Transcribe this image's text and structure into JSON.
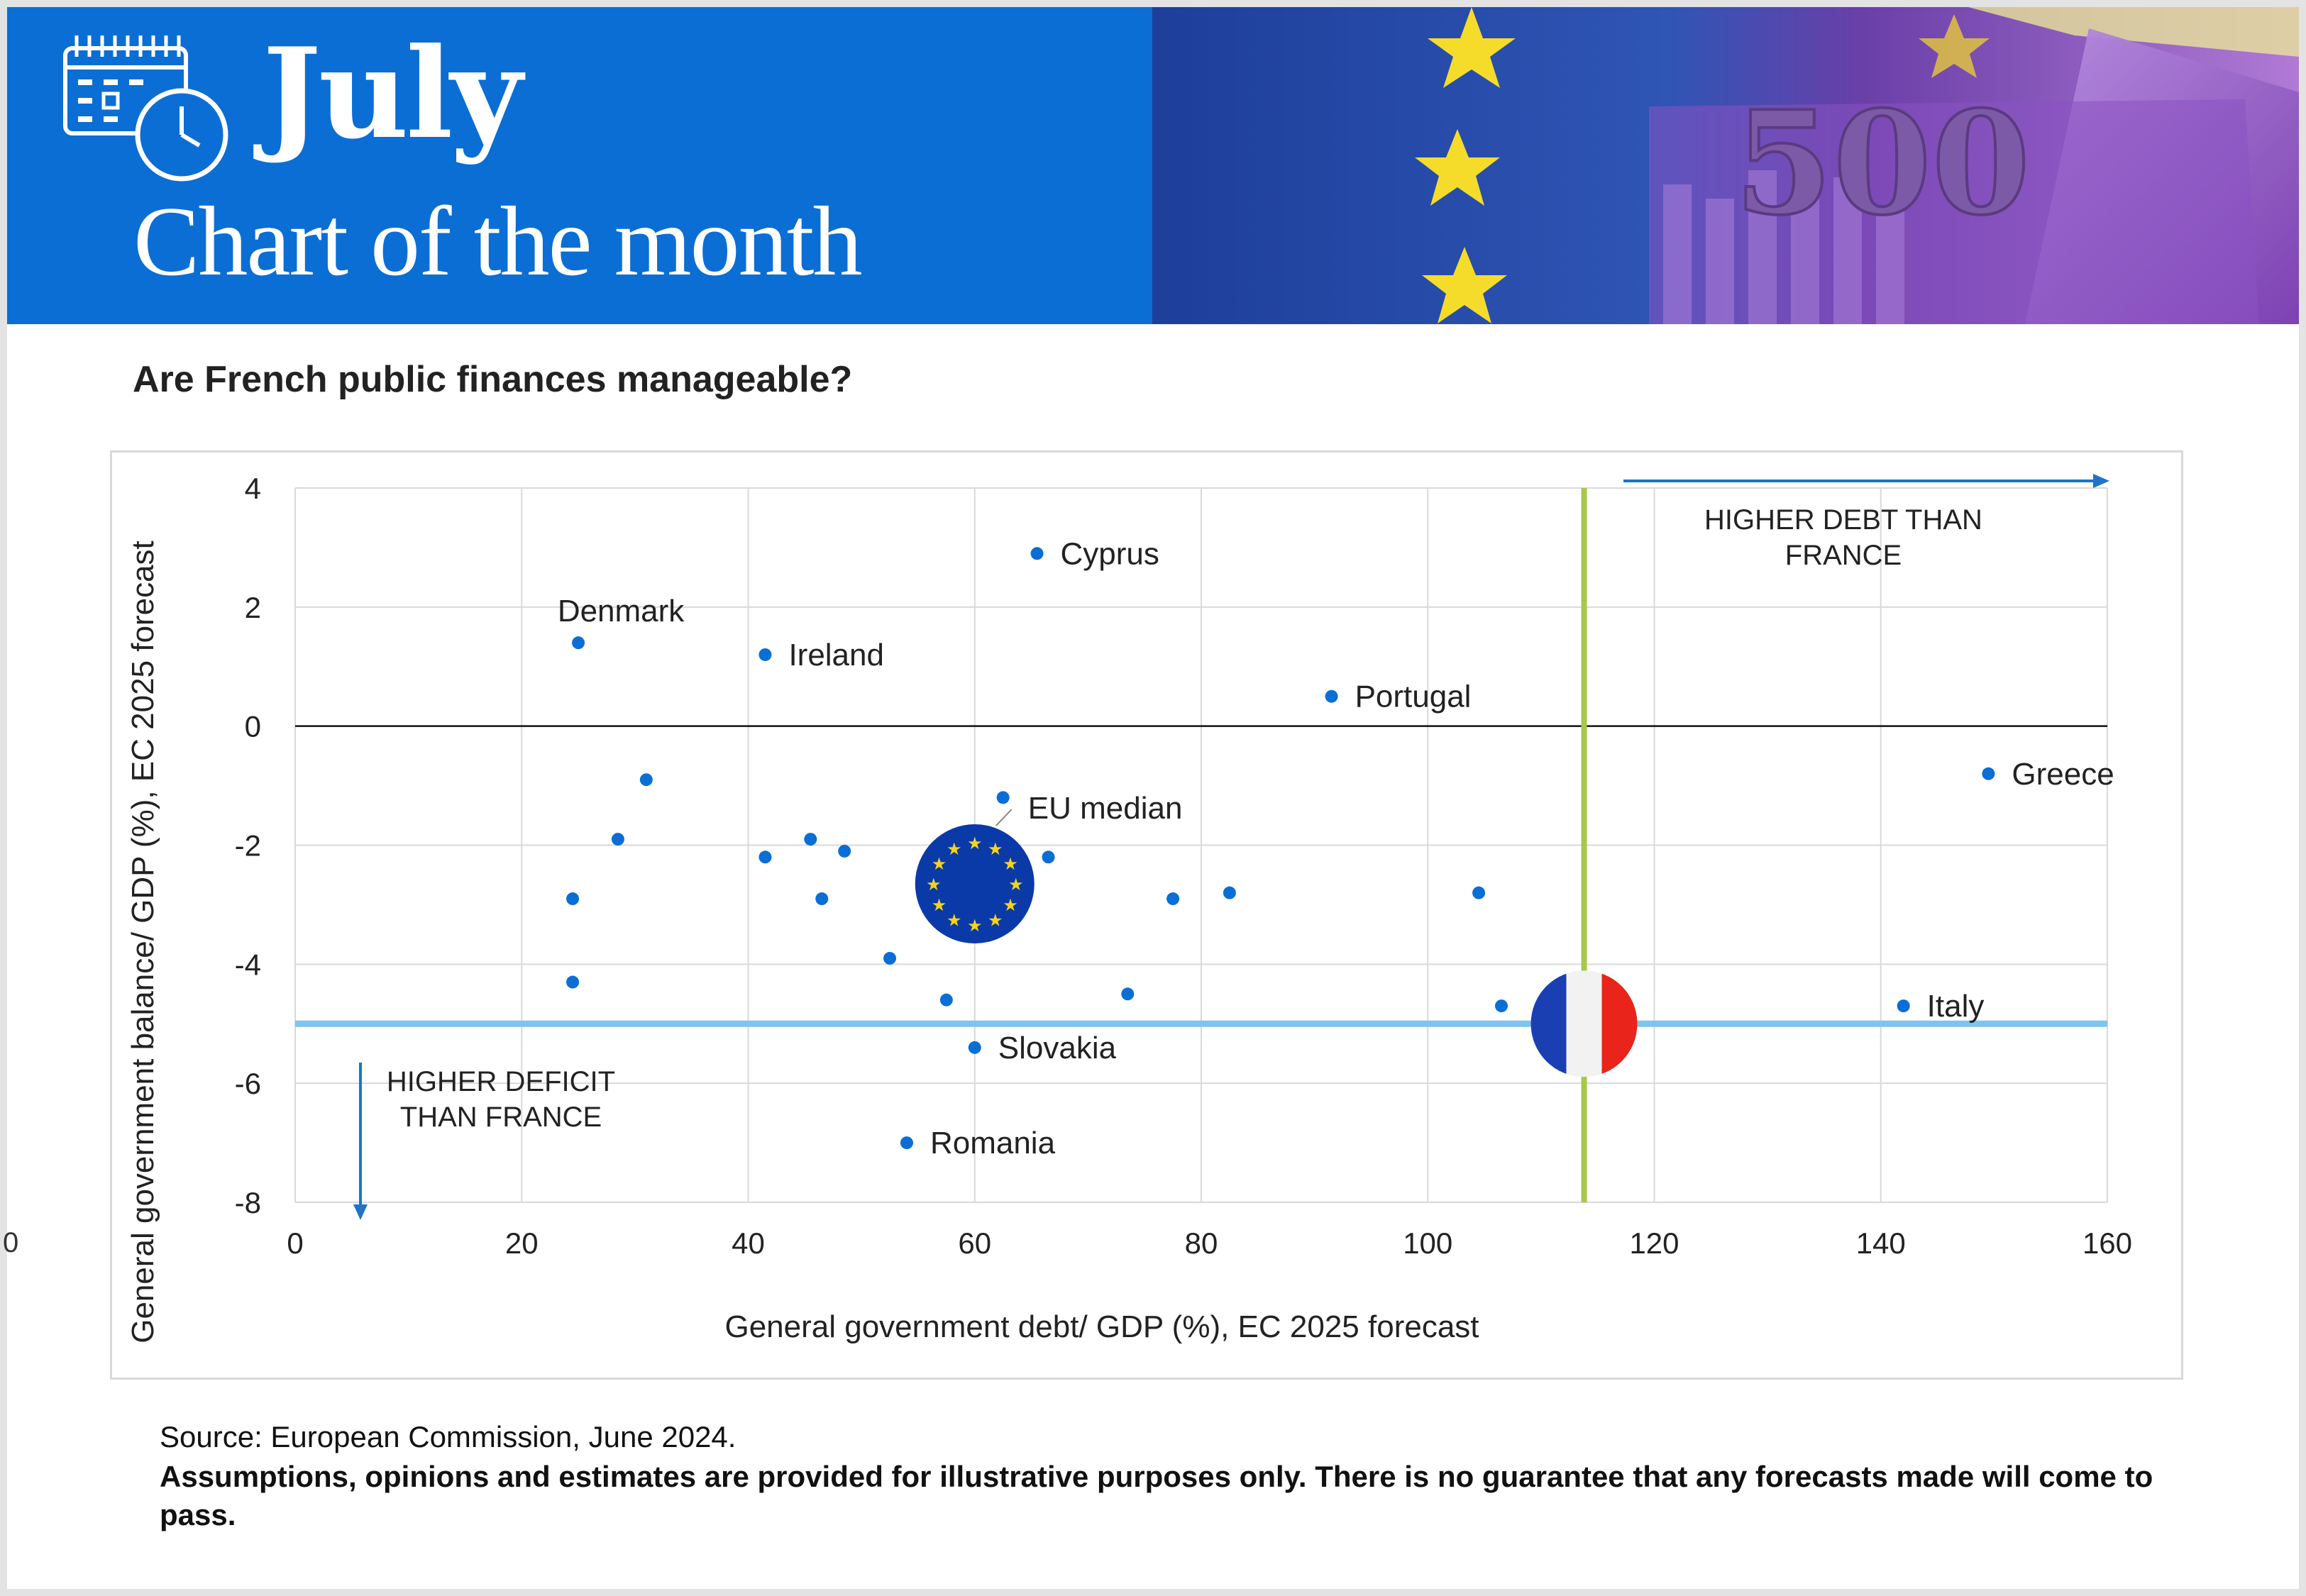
{
  "banner": {
    "month": "July",
    "title": "Chart of the month",
    "accent_color": "#0b6ed4",
    "icons": [
      "calendar-clock-icon",
      "euro-banknote-image"
    ]
  },
  "heading": "Are French public finances manageable?",
  "footer": {
    "source": "Source: European Commission, June 2024.",
    "disclaimer": "Assumptions, opinions and estimates are provided for illustrative purposes only. There is no guarantee that any forecasts made will come to pass."
  },
  "stray_mark": "0",
  "chart_data": {
    "type": "scatter",
    "title": "Are French public finances manageable?",
    "xlabel": "General government debt/ GDP (%), EC 2025 forecast",
    "ylabel": "General government balance/ GDP (%), EC 2025 forecast",
    "xlim": [
      0,
      160
    ],
    "ylim": [
      -8,
      4
    ],
    "x_ticks": [
      0,
      20,
      40,
      60,
      80,
      100,
      120,
      140,
      160
    ],
    "y_ticks": [
      4,
      2,
      0,
      -2,
      -4,
      -6,
      -8
    ],
    "grid": true,
    "point_color": "#0b6ed4",
    "points": [
      {
        "x": 65.5,
        "y": 2.9,
        "label": "Cyprus",
        "label_pos": "right"
      },
      {
        "x": 25.0,
        "y": 1.4,
        "label": "Denmark",
        "label_pos": "above"
      },
      {
        "x": 41.5,
        "y": 1.2,
        "label": "Ireland",
        "label_pos": "right"
      },
      {
        "x": 91.5,
        "y": 0.5,
        "label": "Portugal",
        "label_pos": "right"
      },
      {
        "x": 149.5,
        "y": -0.8,
        "label": "Greece",
        "label_pos": "right"
      },
      {
        "x": 142.0,
        "y": -4.7,
        "label": "Italy",
        "label_pos": "right"
      },
      {
        "x": 60.0,
        "y": -5.4,
        "label": "Slovakia",
        "label_pos": "right"
      },
      {
        "x": 54.0,
        "y": -7.0,
        "label": "Romania",
        "label_pos": "right"
      },
      {
        "x": 31.0,
        "y": -0.9,
        "label": ""
      },
      {
        "x": 28.5,
        "y": -1.9,
        "label": ""
      },
      {
        "x": 24.5,
        "y": -2.9,
        "label": ""
      },
      {
        "x": 24.5,
        "y": -4.3,
        "label": ""
      },
      {
        "x": 41.5,
        "y": -2.2,
        "label": ""
      },
      {
        "x": 45.5,
        "y": -1.9,
        "label": ""
      },
      {
        "x": 48.5,
        "y": -2.1,
        "label": ""
      },
      {
        "x": 46.5,
        "y": -2.9,
        "label": ""
      },
      {
        "x": 52.5,
        "y": -3.9,
        "label": ""
      },
      {
        "x": 57.5,
        "y": -4.6,
        "label": ""
      },
      {
        "x": 62.5,
        "y": -1.2,
        "label": ""
      },
      {
        "x": 66.5,
        "y": -2.2,
        "label": ""
      },
      {
        "x": 73.5,
        "y": -4.5,
        "label": ""
      },
      {
        "x": 77.5,
        "y": -2.9,
        "label": ""
      },
      {
        "x": 82.5,
        "y": -2.8,
        "label": ""
      },
      {
        "x": 104.5,
        "y": -2.8,
        "label": ""
      },
      {
        "x": 106.5,
        "y": -4.7,
        "label": ""
      }
    ],
    "eu_median": {
      "x": 60.0,
      "y": -2.65,
      "label": "EU median",
      "icon": "eu-flag-icon"
    },
    "france": {
      "x": 113.8,
      "y": -5.0,
      "icon": "france-flag-icon"
    },
    "france_debt_line_color": "#a8c84a",
    "france_deficit_line_color": "#7fc4ee",
    "annotations": {
      "higher_debt": [
        "HIGHER DEBT THAN",
        "FRANCE"
      ],
      "higher_deficit": [
        "HIGHER DEFICIT",
        "THAN FRANCE"
      ]
    }
  }
}
